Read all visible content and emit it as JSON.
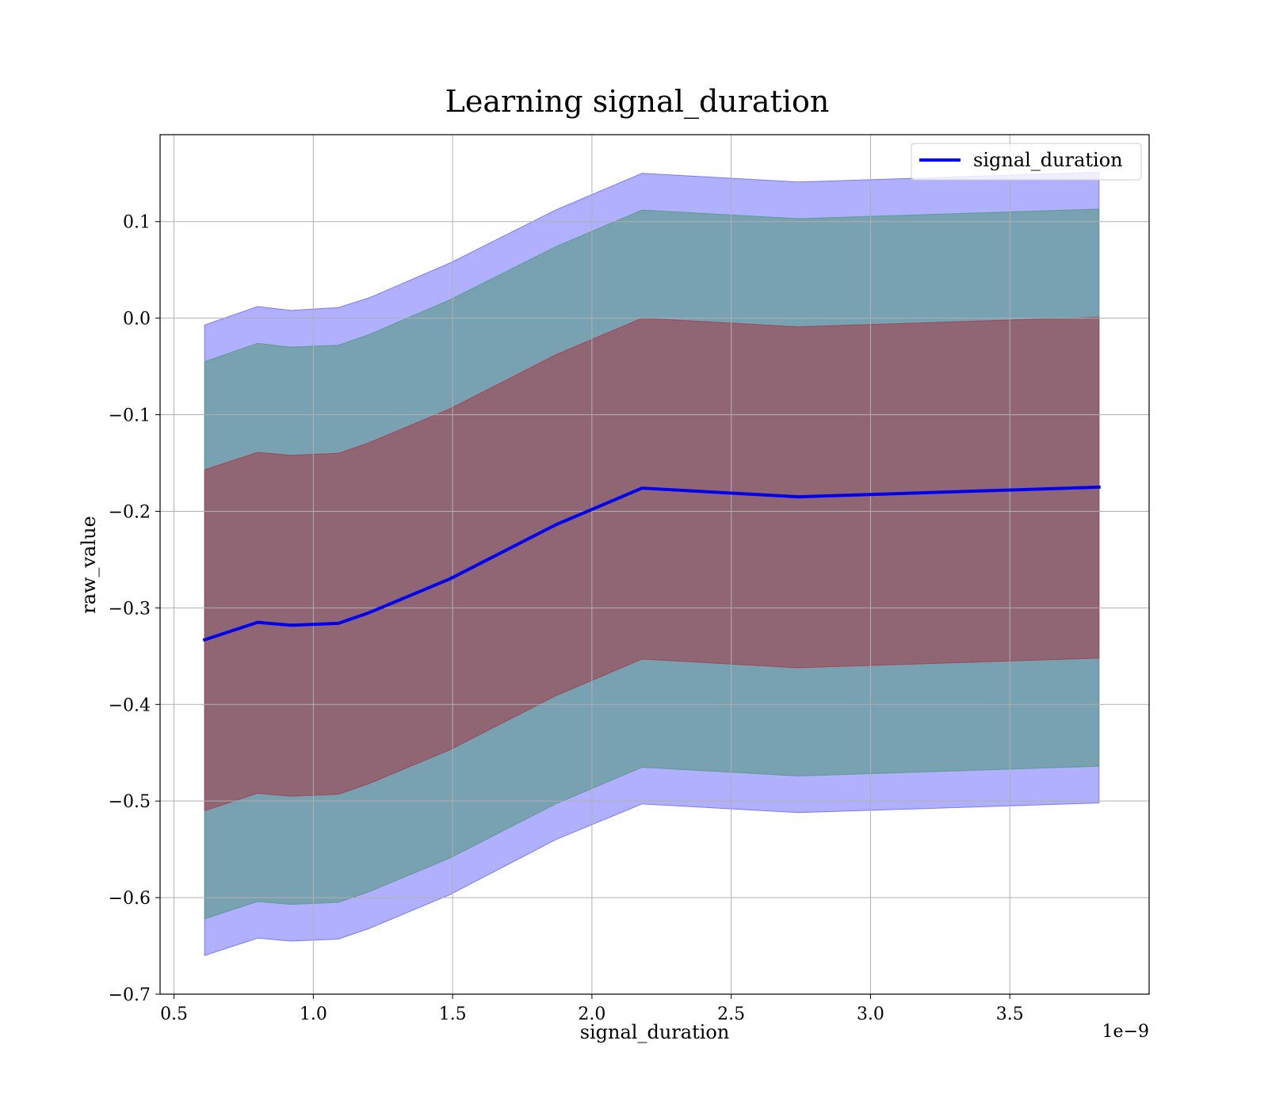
{
  "chart_data": {
    "type": "line",
    "title": "Learning signal_duration",
    "xlabel": "signal_duration",
    "ylabel": "raw_value",
    "x_offset_label": "1e−9",
    "xlim": [
      0.45,
      4.0
    ],
    "ylim": [
      -0.7,
      0.19
    ],
    "grid": true,
    "legend_placement": "top-right",
    "x_ticks": [
      0.5,
      1.0,
      1.5,
      2.0,
      2.5,
      3.0,
      3.5
    ],
    "x_tick_labels": [
      "0.5",
      "1.0",
      "1.5",
      "2.0",
      "2.5",
      "3.0",
      "3.5"
    ],
    "y_ticks": [
      0.1,
      0.0,
      -0.1,
      -0.2,
      -0.3,
      -0.4,
      -0.5,
      -0.6,
      -0.7
    ],
    "y_tick_labels": [
      "0.1",
      "0.0",
      "−0.1",
      "−0.2",
      "−0.3",
      "−0.4",
      "−0.5",
      "−0.6",
      "−0.7"
    ],
    "x": [
      0.61,
      0.8,
      0.92,
      1.09,
      1.2,
      1.49,
      1.87,
      2.18,
      2.74,
      3.82
    ],
    "series": [
      {
        "name": "signal_duration",
        "color": "#0000ee",
        "values": [
          -0.333,
          -0.315,
          -0.318,
          -0.316,
          -0.305,
          -0.27,
          -0.214,
          -0.176,
          -0.185,
          -0.175
        ]
      }
    ],
    "bands": [
      {
        "color": "#7070ff",
        "opacity": 0.55,
        "upper": [
          -0.007,
          0.012,
          0.008,
          0.011,
          0.021,
          0.057,
          0.112,
          0.15,
          0.141,
          0.151
        ],
        "lower": [
          -0.66,
          -0.642,
          -0.645,
          -0.643,
          -0.632,
          -0.597,
          -0.54,
          -0.503,
          -0.512,
          -0.502
        ]
      },
      {
        "color": "#5a9a88",
        "opacity": 0.65,
        "upper": [
          -0.045,
          -0.026,
          -0.03,
          -0.028,
          -0.017,
          0.019,
          0.074,
          0.112,
          0.103,
          0.113
        ],
        "lower": [
          -0.622,
          -0.604,
          -0.607,
          -0.605,
          -0.594,
          -0.559,
          -0.503,
          -0.465,
          -0.474,
          -0.464
        ]
      },
      {
        "color": "#a0424f",
        "opacity": 0.62,
        "upper": [
          -0.157,
          -0.139,
          -0.142,
          -0.14,
          -0.129,
          -0.094,
          -0.038,
          0.0,
          -0.009,
          0.001
        ],
        "lower": [
          -0.51,
          -0.492,
          -0.495,
          -0.493,
          -0.482,
          -0.447,
          -0.391,
          -0.353,
          -0.362,
          -0.352
        ]
      }
    ]
  }
}
